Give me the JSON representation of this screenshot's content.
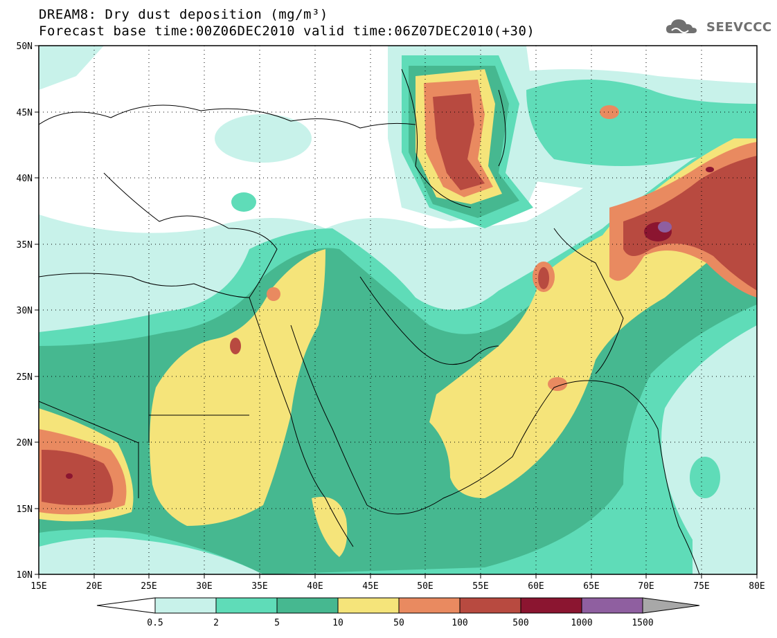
{
  "title_line1": "DREAM8: Dry dust deposition (mg/m³)",
  "title_line2": "Forecast base time:00Z06DEC2010 valid time:06Z07DEC2010(+30)",
  "logo_text": "SEEVCCC",
  "lat_labels": [
    "50N",
    "45N",
    "40N",
    "35N",
    "30N",
    "25N",
    "20N",
    "15N",
    "10N"
  ],
  "lon_labels": [
    "15E",
    "20E",
    "25E",
    "30E",
    "35E",
    "40E",
    "45E",
    "50E",
    "55E",
    "60E",
    "65E",
    "70E",
    "75E",
    "80E"
  ],
  "colorbar": {
    "boundaries": [
      "0.5",
      "2",
      "5",
      "10",
      "50",
      "100",
      "500",
      "1000",
      "1500"
    ],
    "colors": [
      "#c8f2ea",
      "#5fdcb8",
      "#46b890",
      "#f5e47a",
      "#e98a60",
      "#b84a40",
      "#8b1530",
      "#8f5fa0"
    ],
    "over_color": "#a8a8a8",
    "under_color": "#ffffff"
  }
}
